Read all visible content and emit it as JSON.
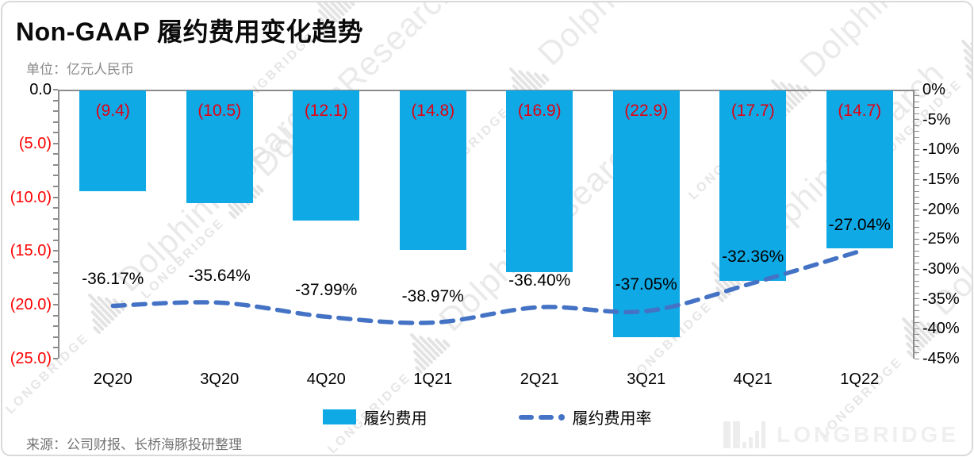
{
  "header": {
    "title": "Non-GAAP 履约费用变化趋势",
    "unit_label": "单位：亿元人民币"
  },
  "source_note": "来源：公司财报、长桥海豚投研整理",
  "brand": {
    "logo_text": "LONGBRIDGE",
    "watermark_big": "DolphinResearch",
    "watermark_small": "LONGBRIDGE"
  },
  "legend": {
    "items": [
      {
        "label": "履约费用",
        "type": "bar"
      },
      {
        "label": "履约费用率",
        "type": "dashed-line"
      }
    ]
  },
  "chart_data": {
    "type": "bar",
    "subtype": "bar+line combo, bars hang from zero line (negative values)",
    "categories": [
      "2Q20",
      "3Q20",
      "4Q20",
      "1Q21",
      "2Q21",
      "3Q21",
      "4Q21",
      "1Q22"
    ],
    "series": [
      {
        "name": "履约费用",
        "type": "bar",
        "axis": "left",
        "unit": "亿元人民币",
        "values": [
          -9.4,
          -10.5,
          -12.1,
          -14.8,
          -16.9,
          -22.9,
          -17.7,
          -14.7
        ],
        "labels": [
          "(9.4)",
          "(10.5)",
          "(12.1)",
          "(14.8)",
          "(16.9)",
          "(22.9)",
          "(17.7)",
          "(14.7)"
        ]
      },
      {
        "name": "履约费用率",
        "type": "line",
        "axis": "right",
        "unit": "%",
        "values": [
          -36.17,
          -35.64,
          -37.99,
          -38.97,
          -36.4,
          -37.05,
          -32.36,
          -27.04
        ],
        "labels": [
          "-36.17%",
          "-35.64%",
          "-37.99%",
          "-38.97%",
          "-36.40%",
          "-37.05%",
          "-32.36%",
          "-27.04%"
        ]
      }
    ],
    "left_axis": {
      "ticks": [
        "0.0",
        "(5.0)",
        "(10.0)",
        "(15.0)",
        "(20.0)",
        "(25.0)"
      ],
      "range": [
        0,
        -25
      ],
      "minor_step": 1
    },
    "right_axis": {
      "ticks": [
        "0%",
        "-5%",
        "-10%",
        "-15%",
        "-20%",
        "-25%",
        "-30%",
        "-35%",
        "-40%",
        "-45%"
      ],
      "range": [
        0,
        -45
      ],
      "minor_step": 1
    },
    "grid": "off",
    "legend_position": "bottom-center",
    "colors": {
      "bar": "#0FA9E6",
      "line": "#4472C4",
      "bar_label": "#E40011",
      "axis_negative_label": "#FF0000",
      "axis_zero_label": "#000000",
      "axis_line": "#8C8C8C"
    }
  }
}
